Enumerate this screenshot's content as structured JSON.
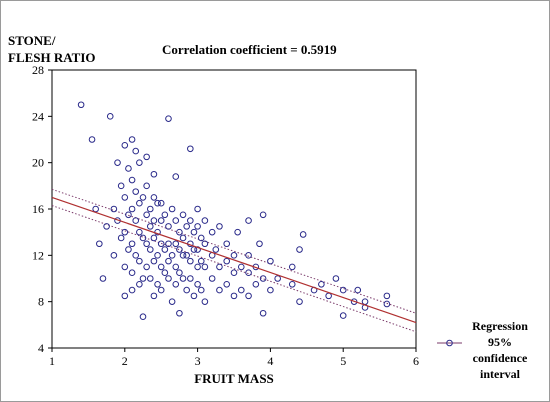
{
  "chart_data": {
    "type": "scatter",
    "title": "Correlation coefficient  = 0.5919",
    "xlabel": "FRUIT MASS",
    "ylabel_lines": [
      "STONE/",
      "FLESH RATIO"
    ],
    "xlim": [
      1,
      6
    ],
    "ylim": [
      4,
      28
    ],
    "xticks": [
      "1",
      "2",
      "3",
      "4",
      "5",
      "6"
    ],
    "yticks": [
      "4",
      "8",
      "12",
      "16",
      "20",
      "24",
      "28"
    ],
    "grid": false,
    "legend_position": "bottom-right",
    "legend_lines": [
      "Regression",
      "95%",
      "confidence",
      "interval"
    ],
    "colors": {
      "points": "#2a2a8a",
      "regression": "#b03030",
      "confidence": "#7a3a6a",
      "frame": "#000000"
    },
    "regression": {
      "x": [
        1,
        6
      ],
      "y": [
        17.0,
        6.2
      ]
    },
    "confidence_upper": {
      "x": [
        1,
        6
      ],
      "y": [
        17.7,
        7.0
      ]
    },
    "confidence_lower": {
      "x": [
        1,
        6
      ],
      "y": [
        16.3,
        5.4
      ]
    },
    "points": [
      [
        1.4,
        25.0
      ],
      [
        1.55,
        22.0
      ],
      [
        1.6,
        16.0
      ],
      [
        1.65,
        13.0
      ],
      [
        1.7,
        10.0
      ],
      [
        1.75,
        14.5
      ],
      [
        1.8,
        24.0
      ],
      [
        1.85,
        16.0
      ],
      [
        1.85,
        12.0
      ],
      [
        1.9,
        20.0
      ],
      [
        1.9,
        15.0
      ],
      [
        1.95,
        18.0
      ],
      [
        1.95,
        13.5
      ],
      [
        2.0,
        21.5
      ],
      [
        2.0,
        17.0
      ],
      [
        2.0,
        14.0
      ],
      [
        2.0,
        11.0
      ],
      [
        2.0,
        8.5
      ],
      [
        2.05,
        19.5
      ],
      [
        2.05,
        15.5
      ],
      [
        2.05,
        12.5
      ],
      [
        2.1,
        22.0
      ],
      [
        2.1,
        18.5
      ],
      [
        2.1,
        16.0
      ],
      [
        2.1,
        13.0
      ],
      [
        2.1,
        10.5
      ],
      [
        2.1,
        9.0
      ],
      [
        2.15,
        21.0
      ],
      [
        2.15,
        17.5
      ],
      [
        2.15,
        15.0
      ],
      [
        2.15,
        12.0
      ],
      [
        2.2,
        20.0
      ],
      [
        2.2,
        16.5
      ],
      [
        2.2,
        14.0
      ],
      [
        2.2,
        11.5
      ],
      [
        2.2,
        9.5
      ],
      [
        2.25,
        17.0
      ],
      [
        2.25,
        13.5
      ],
      [
        2.25,
        10.0
      ],
      [
        2.25,
        6.7
      ],
      [
        2.3,
        20.5
      ],
      [
        2.3,
        18.0
      ],
      [
        2.3,
        15.5
      ],
      [
        2.3,
        13.0
      ],
      [
        2.3,
        11.0
      ],
      [
        2.35,
        16.0
      ],
      [
        2.35,
        14.5
      ],
      [
        2.35,
        12.5
      ],
      [
        2.35,
        10.0
      ],
      [
        2.4,
        19.0
      ],
      [
        2.4,
        17.0
      ],
      [
        2.4,
        15.0
      ],
      [
        2.4,
        13.5
      ],
      [
        2.4,
        11.5
      ],
      [
        2.4,
        8.5
      ],
      [
        2.45,
        16.5
      ],
      [
        2.45,
        14.0
      ],
      [
        2.45,
        12.0
      ],
      [
        2.45,
        9.5
      ],
      [
        2.5,
        16.5
      ],
      [
        2.5,
        15.0
      ],
      [
        2.5,
        13.0
      ],
      [
        2.5,
        11.0
      ],
      [
        2.5,
        9.0
      ],
      [
        2.55,
        15.5
      ],
      [
        2.55,
        12.5
      ],
      [
        2.55,
        10.5
      ],
      [
        2.6,
        23.8
      ],
      [
        2.6,
        14.5
      ],
      [
        2.6,
        13.0
      ],
      [
        2.6,
        11.5
      ],
      [
        2.6,
        10.0
      ],
      [
        2.65,
        16.0
      ],
      [
        2.65,
        12.0
      ],
      [
        2.65,
        8.0
      ],
      [
        2.7,
        18.8
      ],
      [
        2.7,
        15.0
      ],
      [
        2.7,
        13.0
      ],
      [
        2.7,
        11.0
      ],
      [
        2.7,
        9.5
      ],
      [
        2.75,
        14.0
      ],
      [
        2.75,
        12.5
      ],
      [
        2.75,
        10.5
      ],
      [
        2.75,
        7.0
      ],
      [
        2.8,
        15.5
      ],
      [
        2.8,
        13.5
      ],
      [
        2.8,
        12.0
      ],
      [
        2.8,
        10.0
      ],
      [
        2.85,
        14.5
      ],
      [
        2.85,
        12.0
      ],
      [
        2.85,
        9.0
      ],
      [
        2.9,
        21.2
      ],
      [
        2.9,
        15.0
      ],
      [
        2.9,
        13.0
      ],
      [
        2.9,
        11.5
      ],
      [
        2.9,
        10.0
      ],
      [
        2.95,
        14.0
      ],
      [
        2.95,
        12.5
      ],
      [
        2.95,
        8.5
      ],
      [
        3.0,
        16.0
      ],
      [
        3.0,
        14.5
      ],
      [
        3.0,
        12.5
      ],
      [
        3.0,
        11.0
      ],
      [
        3.0,
        9.5
      ],
      [
        3.05,
        13.5
      ],
      [
        3.05,
        11.5
      ],
      [
        3.05,
        9.0
      ],
      [
        3.1,
        15.0
      ],
      [
        3.1,
        13.0
      ],
      [
        3.1,
        11.0
      ],
      [
        3.1,
        8.0
      ],
      [
        3.2,
        14.0
      ],
      [
        3.2,
        12.0
      ],
      [
        3.2,
        10.0
      ],
      [
        3.25,
        12.5
      ],
      [
        3.3,
        14.5
      ],
      [
        3.3,
        11.0
      ],
      [
        3.3,
        9.0
      ],
      [
        3.4,
        13.0
      ],
      [
        3.4,
        11.5
      ],
      [
        3.4,
        9.5
      ],
      [
        3.5,
        12.0
      ],
      [
        3.5,
        10.5
      ],
      [
        3.5,
        8.5
      ],
      [
        3.55,
        14.0
      ],
      [
        3.6,
        11.0
      ],
      [
        3.6,
        9.0
      ],
      [
        3.7,
        12.0
      ],
      [
        3.7,
        15.0
      ],
      [
        3.7,
        10.5
      ],
      [
        3.7,
        8.5
      ],
      [
        3.8,
        11.0
      ],
      [
        3.8,
        9.5
      ],
      [
        3.85,
        13.0
      ],
      [
        3.9,
        15.5
      ],
      [
        3.9,
        10.0
      ],
      [
        3.9,
        7.0
      ],
      [
        4.0,
        11.5
      ],
      [
        4.0,
        9.0
      ],
      [
        4.1,
        10.0
      ],
      [
        4.3,
        9.5
      ],
      [
        4.3,
        11.0
      ],
      [
        4.4,
        12.5
      ],
      [
        4.4,
        8.0
      ],
      [
        4.45,
        13.8
      ],
      [
        4.6,
        9.0
      ],
      [
        4.7,
        9.5
      ],
      [
        4.8,
        8.5
      ],
      [
        4.9,
        10.0
      ],
      [
        5.0,
        9.0
      ],
      [
        5.0,
        6.8
      ],
      [
        5.15,
        8.0
      ],
      [
        5.2,
        9.0
      ],
      [
        5.3,
        8.0
      ],
      [
        5.3,
        7.5
      ],
      [
        5.6,
        8.5
      ],
      [
        5.6,
        7.8
      ]
    ]
  }
}
